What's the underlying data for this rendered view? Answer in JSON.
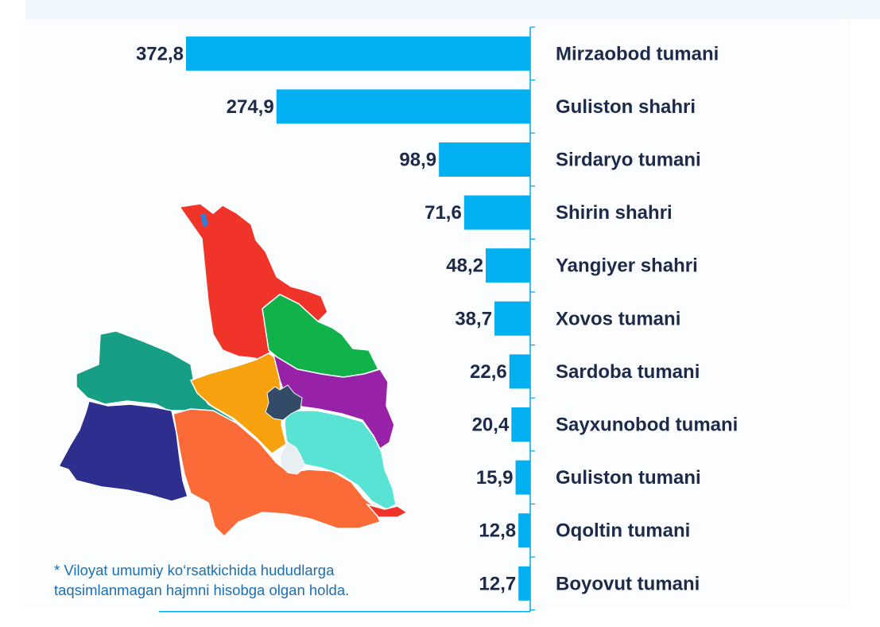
{
  "chart_data": {
    "type": "bar",
    "orientation": "horizontal",
    "categories": [
      "Mirzaobod tumani",
      "Guliston shahri",
      "Sirdaryo tumani",
      "Shirin shahri",
      "Yangiyer shahri",
      "Xovos tumani",
      "Sardoba tumani",
      "Sayxunobod tumani",
      "Guliston tumani",
      "Oqoltin tumani",
      "Boyovut tumani"
    ],
    "values": [
      372.8,
      274.9,
      98.9,
      71.6,
      48.2,
      38.7,
      22.6,
      20.4,
      15.9,
      12.8,
      12.7
    ],
    "value_labels": [
      "372,8",
      "274,9",
      "98,9",
      "71,6",
      "48,2",
      "38,7",
      "22,6",
      "20,4",
      "15,9",
      "12,8",
      "12,7"
    ],
    "bar_color": "#00b0f0",
    "grid": false,
    "legend": "none"
  },
  "footnote": "* Viloyat umumiy ko‘rsatkichida hududlarga taqsimlanmagan hajmni hisobga olgan holda.",
  "map": {
    "region_colors": [
      "#f0342a",
      "#12b24a",
      "#179f86",
      "#f7a10e",
      "#9722a8",
      "#2e2e8e",
      "#fb6b38",
      "#58e3d4",
      "#334b66",
      "#e8eef2"
    ]
  }
}
